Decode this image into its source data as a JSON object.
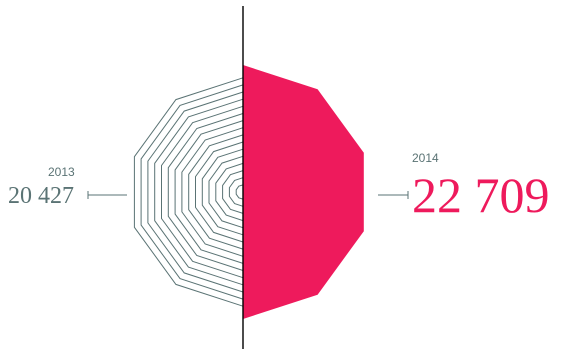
{
  "chart_data": {
    "type": "bar",
    "categories": [
      "2013",
      "2014"
    ],
    "values": [
      20427,
      22709
    ],
    "labels": {
      "left": {
        "year": "2013",
        "value": "20 427"
      },
      "right": {
        "year": "2014",
        "value": "22 709"
      }
    },
    "colors": {
      "2013": "#5a7374",
      "2014": "#ee1a5c",
      "axis": "#000000"
    }
  }
}
